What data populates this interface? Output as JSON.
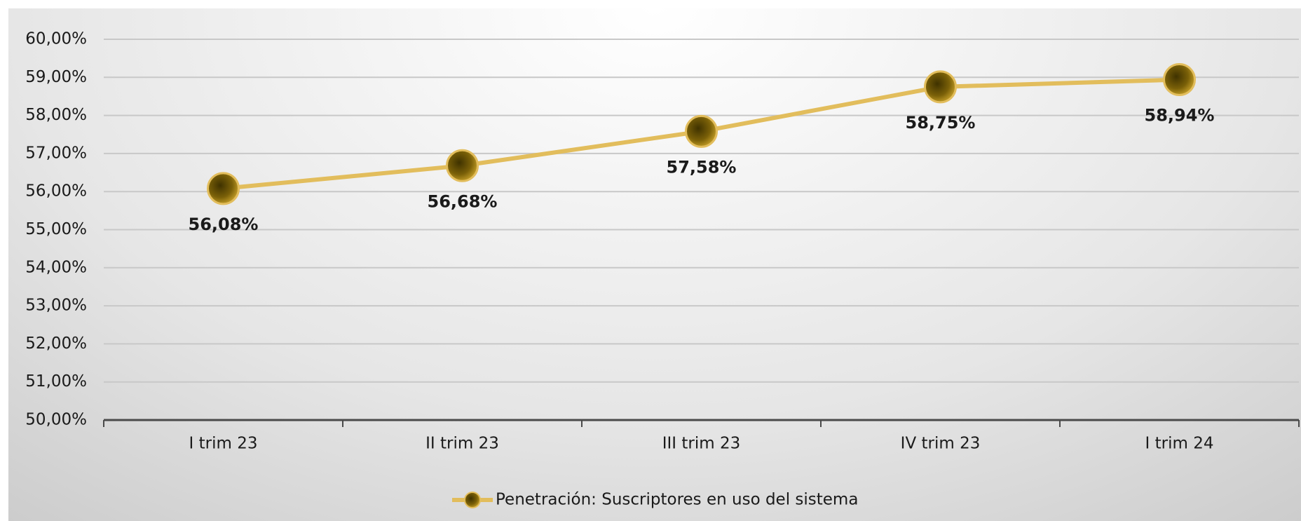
{
  "chart_data": {
    "type": "line",
    "categories": [
      "I trim 23",
      "II trim 23",
      "III trim 23",
      "IV trim 23",
      "I trim 24"
    ],
    "series": [
      {
        "name": "Penetración: Suscriptores en uso del sistema",
        "color": "#e2bd5c",
        "values": [
          56.08,
          56.68,
          57.58,
          58.75,
          58.94
        ],
        "value_labels": [
          "56,08%",
          "56,68%",
          "57,58%",
          "58,75%",
          "58,94%"
        ]
      }
    ],
    "ylim": [
      50,
      60
    ],
    "yticks": [
      {
        "value": 50,
        "label": "50,00%"
      },
      {
        "value": 51,
        "label": "51,00%"
      },
      {
        "value": 52,
        "label": "52,00%"
      },
      {
        "value": 53,
        "label": "53,00%"
      },
      {
        "value": 54,
        "label": "54,00%"
      },
      {
        "value": 55,
        "label": "55,00%"
      },
      {
        "value": 56,
        "label": "56,00%"
      },
      {
        "value": 57,
        "label": "57,00%"
      },
      {
        "value": 58,
        "label": "58,00%"
      },
      {
        "value": 59,
        "label": "59,00%"
      },
      {
        "value": 60,
        "label": "60,00%"
      }
    ],
    "grid": true,
    "legend": "bottom"
  }
}
